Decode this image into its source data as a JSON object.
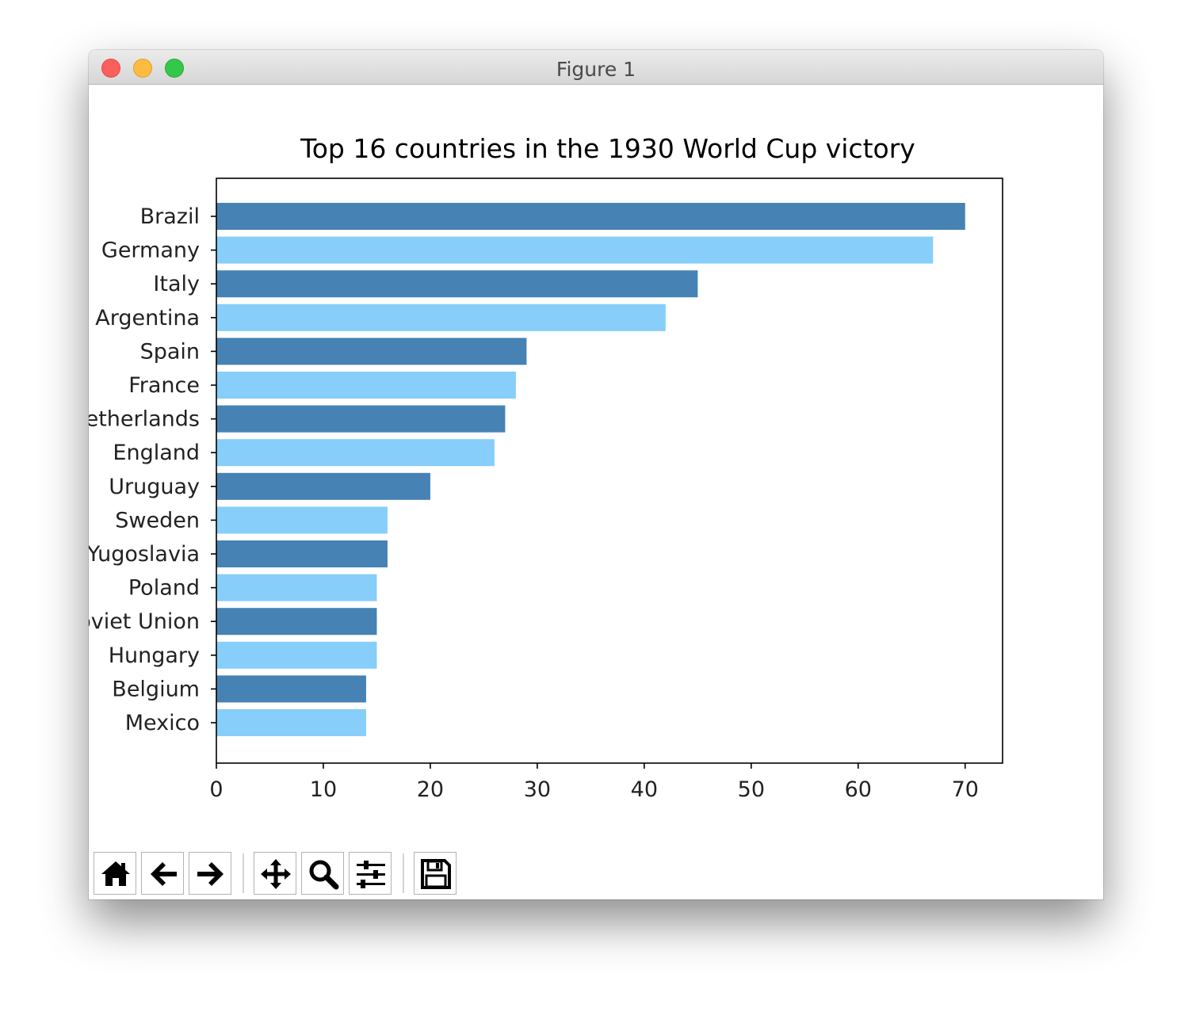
{
  "window": {
    "title": "Figure 1"
  },
  "chart_data": {
    "type": "bar",
    "orientation": "horizontal",
    "title": "Top 16 countries in the 1930 World Cup victory",
    "xlabel": "",
    "ylabel": "",
    "categories": [
      "Brazil",
      "Germany",
      "Italy",
      "Argentina",
      "Spain",
      "France",
      "Netherlands",
      "England",
      "Uruguay",
      "Sweden",
      "Yugoslavia",
      "Poland",
      "Soviet Union",
      "Hungary",
      "Belgium",
      "Mexico"
    ],
    "values": [
      70,
      67,
      45,
      42,
      29,
      28,
      27,
      26,
      20,
      16,
      16,
      15,
      15,
      15,
      14,
      14
    ],
    "xlim": [
      0,
      73.5
    ],
    "xticks": [
      0,
      10,
      20,
      30,
      40,
      50,
      60,
      70
    ],
    "colors": [
      "#4682b4",
      "#87cefa"
    ],
    "grid": false,
    "legend": "none"
  },
  "toolbar": {
    "buttons": [
      {
        "icon": "home-icon"
      },
      {
        "icon": "back-arrow-icon"
      },
      {
        "icon": "forward-arrow-icon"
      },
      {
        "icon": "pan-icon"
      },
      {
        "icon": "zoom-icon"
      },
      {
        "icon": "sliders-icon"
      },
      {
        "icon": "save-icon"
      }
    ]
  }
}
